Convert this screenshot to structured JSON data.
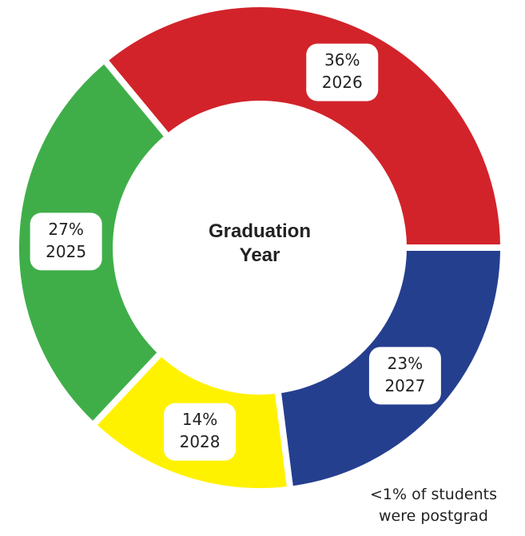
{
  "chart_data": {
    "type": "pie",
    "center_label": "Graduation Year",
    "categories": [
      "2026",
      "2027",
      "2028",
      "2025"
    ],
    "values": [
      36,
      23,
      14,
      27
    ],
    "value_labels": [
      "36%",
      "23%",
      "14%",
      "27%"
    ],
    "colors": [
      "#d2232a",
      "#253f8f",
      "#fff200",
      "#3fae49"
    ],
    "annotation": "<1% of students were postgrad"
  }
}
